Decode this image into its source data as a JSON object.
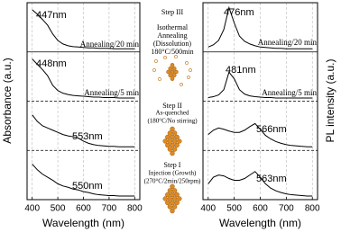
{
  "chart_data": [
    {
      "type": "line",
      "ylabel": "Absorbance (a.u.)",
      "xlabel": "Wavelength (nm)",
      "xlim": [
        380,
        820
      ],
      "xticks": [
        400,
        500,
        600,
        700,
        800
      ],
      "ylim": [
        0,
        1
      ],
      "grid": true,
      "color": "#000000",
      "x": [
        400,
        420,
        440,
        460,
        480,
        500,
        520,
        540,
        560,
        580,
        600,
        620,
        640,
        660,
        680,
        700,
        720,
        740,
        760,
        780,
        800
      ],
      "panels": [
        {
          "peak_label": "447nm",
          "note": "Annealing/20 min",
          "values": [
            0.9,
            0.8,
            0.68,
            0.55,
            0.35,
            0.2,
            0.12,
            0.08,
            0.06,
            0.05,
            0.04,
            0.03,
            0.03,
            0.02,
            0.02,
            0.02,
            0.01,
            0.01,
            0.01,
            0.01,
            0.01
          ]
        },
        {
          "peak_label": "448nm",
          "note": "Annealing/5 min",
          "values": [
            0.9,
            0.78,
            0.66,
            0.52,
            0.3,
            0.18,
            0.12,
            0.09,
            0.07,
            0.06,
            0.05,
            0.04,
            0.03,
            0.03,
            0.02,
            0.02,
            0.02,
            0.01,
            0.01,
            0.01,
            0.01
          ]
        },
        {
          "peak_label": "553nm",
          "values": [
            0.75,
            0.6,
            0.5,
            0.45,
            0.4,
            0.35,
            0.3,
            0.27,
            0.25,
            0.22,
            0.15,
            0.1,
            0.07,
            0.05,
            0.04,
            0.03,
            0.03,
            0.02,
            0.02,
            0.02,
            0.02
          ]
        },
        {
          "peak_label": "550nm",
          "values": [
            0.75,
            0.62,
            0.52,
            0.45,
            0.38,
            0.3,
            0.25,
            0.22,
            0.18,
            0.16,
            0.12,
            0.1,
            0.07,
            0.05,
            0.04,
            0.03,
            0.03,
            0.02,
            0.02,
            0.02,
            0.02
          ]
        }
      ]
    },
    {
      "type": "line",
      "ylabel": "PL intensity (a.u.)",
      "xlabel": "Wavelength (nm)",
      "xlim": [
        380,
        820
      ],
      "xticks": [
        400,
        500,
        600,
        700,
        800
      ],
      "ylim": [
        0,
        1
      ],
      "grid": true,
      "color": "#000000",
      "x": [
        400,
        420,
        440,
        460,
        480,
        500,
        520,
        540,
        560,
        580,
        600,
        620,
        640,
        660,
        680,
        700,
        720,
        740,
        760,
        780,
        800
      ],
      "panels": [
        {
          "peak_label": "476nm",
          "note": "Annealing/20 min",
          "values": [
            0.05,
            0.1,
            0.2,
            0.45,
            0.95,
            0.6,
            0.3,
            0.18,
            0.12,
            0.08,
            0.05,
            0.04,
            0.03,
            0.02,
            0.02,
            0.01,
            0.01,
            0.01,
            0.01,
            0.01,
            0.01
          ]
        },
        {
          "peak_label": "481nm",
          "note": "Annealing/5 min",
          "values": [
            0.02,
            0.04,
            0.08,
            0.2,
            0.6,
            0.45,
            0.2,
            0.1,
            0.06,
            0.04,
            0.03,
            0.02,
            0.02,
            0.01,
            0.01,
            0.01,
            0.01,
            0.01,
            0.01,
            0.01,
            0.01
          ]
        },
        {
          "peak_label": "566nm",
          "values": [
            0.3,
            0.4,
            0.45,
            0.42,
            0.38,
            0.35,
            0.35,
            0.4,
            0.48,
            0.55,
            0.42,
            0.28,
            0.2,
            0.14,
            0.1,
            0.07,
            0.05,
            0.04,
            0.03,
            0.02,
            0.02
          ]
        },
        {
          "peak_label": "563nm",
          "values": [
            0.3,
            0.45,
            0.5,
            0.48,
            0.42,
            0.38,
            0.38,
            0.42,
            0.5,
            0.58,
            0.45,
            0.3,
            0.2,
            0.14,
            0.1,
            0.07,
            0.05,
            0.04,
            0.03,
            0.02,
            0.02
          ]
        }
      ]
    }
  ],
  "steps": [
    {
      "title": "Step III",
      "lines": [
        "Isothermal",
        "Annealing",
        "(Dissolution)",
        "180°C/500min"
      ]
    },
    {
      "title": "Step II",
      "lines": [
        "As-quenched",
        "(180°C/No stirring)"
      ]
    },
    {
      "title": "Step I",
      "lines": [
        "Injection (Growth)",
        "(270°C/2min/250rpm)"
      ]
    }
  ]
}
